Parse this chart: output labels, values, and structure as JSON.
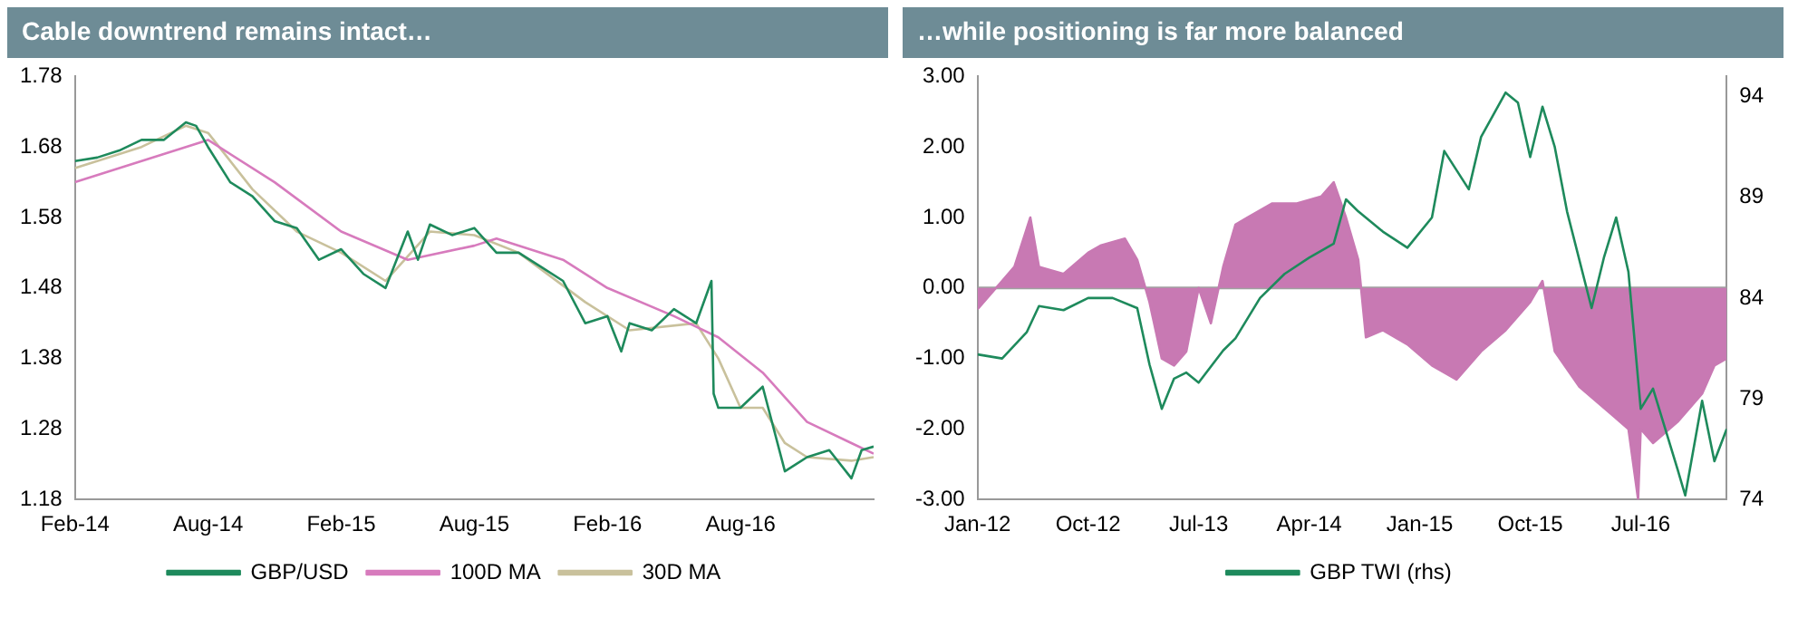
{
  "chart_data": [
    {
      "type": "line",
      "title": "Cable downtrend remains intact…",
      "legend": "bottom",
      "xlim": [
        "2014-02",
        "2017-02"
      ],
      "xticks": [
        {
          "value": "2014-02",
          "label": "Feb-14"
        },
        {
          "value": "2014-08",
          "label": "Aug-14"
        },
        {
          "value": "2015-02",
          "label": "Feb-15"
        },
        {
          "value": "2015-08",
          "label": "Aug-15"
        },
        {
          "value": "2016-02",
          "label": "Feb-16"
        },
        {
          "value": "2016-08",
          "label": "Aug-16"
        }
      ],
      "ylim": [
        1.18,
        1.78
      ],
      "yticks": [
        1.18,
        1.28,
        1.38,
        1.48,
        1.58,
        1.68,
        1.78
      ],
      "series": [
        {
          "name": "GBP/USD",
          "color": "#1e8a5c",
          "x": [
            "2014-02",
            "2014-03",
            "2014-04",
            "2014-05",
            "2014-06",
            "2014-07",
            "2014-07-15",
            "2014-08",
            "2014-09",
            "2014-10",
            "2014-11",
            "2014-12",
            "2015-01",
            "2015-02",
            "2015-03",
            "2015-04",
            "2015-05",
            "2015-05-15",
            "2015-06",
            "2015-07",
            "2015-08",
            "2015-09",
            "2015-10",
            "2015-11",
            "2015-12",
            "2016-01",
            "2016-02",
            "2016-02-20",
            "2016-03",
            "2016-04",
            "2016-05",
            "2016-06",
            "2016-06-22",
            "2016-06-25",
            "2016-07",
            "2016-08",
            "2016-09",
            "2016-10",
            "2016-11",
            "2016-12",
            "2017-01",
            "2017-01-15",
            "2017-02"
          ],
          "values": [
            1.66,
            1.665,
            1.675,
            1.69,
            1.69,
            1.715,
            1.71,
            1.68,
            1.63,
            1.61,
            1.575,
            1.565,
            1.52,
            1.535,
            1.5,
            1.48,
            1.56,
            1.52,
            1.57,
            1.555,
            1.565,
            1.53,
            1.53,
            1.51,
            1.49,
            1.43,
            1.44,
            1.39,
            1.43,
            1.42,
            1.45,
            1.43,
            1.49,
            1.33,
            1.31,
            1.31,
            1.34,
            1.22,
            1.24,
            1.25,
            1.21,
            1.25,
            1.255
          ]
        },
        {
          "name": "100D MA",
          "color": "#d77bbd",
          "x": [
            "2014-02",
            "2014-08",
            "2014-11",
            "2015-02",
            "2015-05",
            "2015-08",
            "2015-09",
            "2015-12",
            "2016-02",
            "2016-05",
            "2016-07",
            "2016-09",
            "2016-11",
            "2017-01",
            "2017-02"
          ],
          "values": [
            1.63,
            1.69,
            1.63,
            1.56,
            1.52,
            1.54,
            1.55,
            1.52,
            1.48,
            1.44,
            1.41,
            1.36,
            1.29,
            1.26,
            1.245
          ]
        },
        {
          "name": "30D MA",
          "color": "#c9c19c",
          "x": [
            "2014-02",
            "2014-05",
            "2014-07",
            "2014-08",
            "2014-10",
            "2014-12",
            "2015-02",
            "2015-04",
            "2015-06",
            "2015-08",
            "2015-10",
            "2016-01",
            "2016-03",
            "2016-06",
            "2016-07",
            "2016-08",
            "2016-09",
            "2016-10",
            "2016-11",
            "2017-01",
            "2017-02"
          ],
          "values": [
            1.65,
            1.68,
            1.71,
            1.7,
            1.62,
            1.56,
            1.53,
            1.49,
            1.56,
            1.555,
            1.53,
            1.46,
            1.42,
            1.43,
            1.38,
            1.31,
            1.31,
            1.26,
            1.24,
            1.235,
            1.24
          ]
        }
      ]
    },
    {
      "type": "area",
      "title": "…while positioning is far more balanced",
      "legend": "bottom",
      "xlim": [
        "2012-01",
        "2017-02"
      ],
      "xticks": [
        {
          "value": "2012-01",
          "label": "Jan-12"
        },
        {
          "value": "2012-10",
          "label": "Oct-12"
        },
        {
          "value": "2013-07",
          "label": "Jul-13"
        },
        {
          "value": "2014-04",
          "label": "Apr-14"
        },
        {
          "value": "2015-01",
          "label": "Jan-15"
        },
        {
          "value": "2015-10",
          "label": "Oct-15"
        },
        {
          "value": "2016-07",
          "label": "Jul-16"
        }
      ],
      "ylim": [
        -3,
        3
      ],
      "yticks": [
        {
          "value": -3,
          "label": "-3.00"
        },
        {
          "value": -2,
          "label": "-2.00"
        },
        {
          "value": -1,
          "label": "-1.00"
        },
        {
          "value": 0,
          "label": "0.00"
        },
        {
          "value": 1,
          "label": "1.00"
        },
        {
          "value": 2,
          "label": "2.00"
        },
        {
          "value": 3,
          "label": "3.00"
        }
      ],
      "y2lim": [
        74,
        95
      ],
      "y2ticks": [
        74,
        79,
        84,
        89,
        94
      ],
      "ref_lines": [
        {
          "axis": "y",
          "value": 0,
          "color": "#a0a0a0"
        }
      ],
      "series": [
        {
          "color": "#c879b3",
          "x": [
            "2012-01",
            "2012-03",
            "2012-04",
            "2012-05-10",
            "2012-06",
            "2012-08",
            "2012-10",
            "2012-11",
            "2013-01",
            "2013-02",
            "2013-03",
            "2013-04",
            "2013-05",
            "2013-06",
            "2013-07",
            "2013-08",
            "2013-09",
            "2013-10",
            "2013-11",
            "2014-01",
            "2014-03",
            "2014-05",
            "2014-06",
            "2014-07",
            "2014-08",
            "2014-08-20",
            "2014-10",
            "2014-12",
            "2015-02",
            "2015-04",
            "2015-06",
            "2015-08",
            "2015-10",
            "2015-11",
            "2015-12",
            "2016-02",
            "2016-04",
            "2016-06",
            "2016-06-25",
            "2016-07",
            "2016-08",
            "2016-10",
            "2016-12",
            "2017-01",
            "2017-02"
          ],
          "values": [
            -0.3,
            0.1,
            0.3,
            1.0,
            0.3,
            0.2,
            0.5,
            0.6,
            0.7,
            0.4,
            -0.2,
            -1.0,
            -1.1,
            -0.9,
            0.0,
            -0.5,
            0.3,
            0.9,
            1.0,
            1.2,
            1.2,
            1.3,
            1.5,
            1.0,
            0.4,
            -0.7,
            -0.6,
            -0.8,
            -1.1,
            -1.3,
            -0.9,
            -0.6,
            -0.2,
            0.1,
            -0.9,
            -1.4,
            -1.7,
            -2.0,
            -3.0,
            -2.0,
            -2.2,
            -1.9,
            -1.5,
            -1.1,
            -1.0
          ]
        },
        {
          "type": "line",
          "name": "GBP TWI (rhs)",
          "axis": "y2",
          "color": "#1e8a5c",
          "x": [
            "2012-01",
            "2012-03",
            "2012-05",
            "2012-06",
            "2012-08",
            "2012-10",
            "2012-12",
            "2013-02",
            "2013-03",
            "2013-04",
            "2013-05",
            "2013-06",
            "2013-07",
            "2013-09",
            "2013-10",
            "2013-12",
            "2014-02",
            "2014-04",
            "2014-06",
            "2014-07",
            "2014-08",
            "2014-10",
            "2014-12",
            "2015-02",
            "2015-03",
            "2015-05",
            "2015-06",
            "2015-08",
            "2015-09",
            "2015-10",
            "2015-11",
            "2015-12",
            "2016-01",
            "2016-03",
            "2016-04",
            "2016-05",
            "2016-06",
            "2016-07",
            "2016-08",
            "2016-09",
            "2016-10",
            "2016-10-20",
            "2016-12",
            "2017-01",
            "2017-02"
          ],
          "values": [
            81.2,
            81.0,
            82.3,
            83.6,
            83.4,
            84.0,
            84.0,
            83.5,
            80.7,
            78.5,
            80.0,
            80.3,
            79.8,
            81.4,
            82.0,
            84.0,
            85.2,
            86.0,
            86.7,
            88.9,
            88.3,
            87.3,
            86.5,
            88.0,
            91.3,
            89.4,
            92.0,
            94.2,
            93.7,
            91.0,
            93.5,
            91.5,
            88.3,
            83.5,
            86.0,
            88.0,
            85.3,
            78.5,
            79.5,
            77.5,
            75.5,
            74.2,
            78.9,
            75.9,
            77.5
          ]
        }
      ]
    }
  ]
}
